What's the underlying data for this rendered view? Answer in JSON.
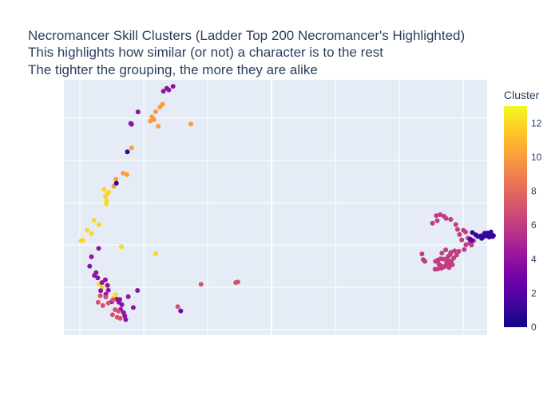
{
  "chart_data": {
    "type": "scatter",
    "title_lines": [
      "Necromancer Skill Clusters (Ladder Top 200 Necromancer's Highlighted)",
      "This highlights how similar (or not) a character is to the rest",
      "The tighter the grouping, the more they are alike"
    ],
    "xlabel": "",
    "ylabel": "",
    "xlim": [
      0,
      100
    ],
    "ylim": [
      0,
      100
    ],
    "grid": true,
    "plot_background": "#e5ecf6",
    "grid_color": "#ffffff",
    "colorbar": {
      "title": "Cluster",
      "min": 0,
      "max": 13,
      "ticks": [
        0,
        2,
        4,
        6,
        8,
        10,
        12
      ],
      "colorscale": [
        "#0d0887",
        "#46039f",
        "#7201a8",
        "#9c179e",
        "#bd3786",
        "#d8576b",
        "#ed7953",
        "#fb9f3a",
        "#fdca26",
        "#f0f921"
      ]
    },
    "points": [
      [
        24.3,
        96.7,
        4
      ],
      [
        25.8,
        97.4,
        4
      ],
      [
        23.5,
        95.5,
        4
      ],
      [
        24.8,
        96.0,
        4
      ],
      [
        17.5,
        87.4,
        4
      ],
      [
        15.8,
        82.9,
        4
      ],
      [
        16.0,
        82.6,
        4
      ],
      [
        20.8,
        85.5,
        10
      ],
      [
        21.7,
        87.5,
        10
      ],
      [
        22.7,
        89.3,
        10
      ],
      [
        23.3,
        90.4,
        10
      ],
      [
        21.3,
        84.4,
        10
      ],
      [
        20.4,
        83.8,
        10
      ],
      [
        22.3,
        81.8,
        10
      ],
      [
        30.0,
        82.7,
        10
      ],
      [
        16.0,
        73.3,
        10
      ],
      [
        14.9,
        62.9,
        10
      ],
      [
        14.0,
        63.4,
        10
      ],
      [
        12.3,
        61.0,
        10
      ],
      [
        11.8,
        58.3,
        10
      ],
      [
        12.4,
        59.5,
        1
      ],
      [
        15.0,
        71.8,
        1
      ],
      [
        9.5,
        57.1,
        12
      ],
      [
        10.6,
        56.0,
        12
      ],
      [
        10.2,
        55.3,
        12
      ],
      [
        9.8,
        54.2,
        12
      ],
      [
        10.1,
        52.6,
        12
      ],
      [
        10.0,
        51.3,
        12
      ],
      [
        7.1,
        45.0,
        12
      ],
      [
        8.3,
        43.3,
        12
      ],
      [
        6.5,
        39.8,
        12
      ],
      [
        4.5,
        37.1,
        12
      ],
      [
        4.1,
        37.0,
        12
      ],
      [
        5.5,
        41.1,
        12
      ],
      [
        13.6,
        34.6,
        12
      ],
      [
        21.7,
        31.9,
        12
      ],
      [
        11.8,
        14.5,
        12
      ],
      [
        9.0,
        18.6,
        12
      ],
      [
        8.3,
        20.0,
        12
      ],
      [
        12.2,
        15.8,
        12
      ],
      [
        8.2,
        34.0,
        4
      ],
      [
        6.5,
        30.7,
        4
      ],
      [
        6.1,
        27.0,
        4
      ],
      [
        7.6,
        24.5,
        4
      ],
      [
        7.2,
        23.4,
        4
      ],
      [
        8.0,
        22.4,
        4
      ],
      [
        9.8,
        21.7,
        4
      ],
      [
        10.3,
        19.5,
        4
      ],
      [
        10.5,
        17.6,
        4
      ],
      [
        9.9,
        16.0,
        4
      ],
      [
        12.5,
        14.1,
        4
      ],
      [
        13.2,
        14.0,
        4
      ],
      [
        11.3,
        13.1,
        4
      ],
      [
        13.0,
        12.9,
        4
      ],
      [
        13.7,
        11.9,
        4
      ],
      [
        13.4,
        10.1,
        4
      ],
      [
        14.1,
        8.8,
        4
      ],
      [
        14.4,
        7.5,
        4
      ],
      [
        14.6,
        6.1,
        4
      ],
      [
        16.4,
        10.8,
        4
      ],
      [
        17.4,
        17.5,
        4
      ],
      [
        15.2,
        15.1,
        4
      ],
      [
        9.0,
        20.6,
        4
      ],
      [
        8.7,
        17.4,
        4
      ],
      [
        27.6,
        9.5,
        3
      ],
      [
        9.9,
        14.9,
        7
      ],
      [
        8.6,
        15.4,
        7
      ],
      [
        8.1,
        12.9,
        7
      ],
      [
        9.2,
        11.6,
        7
      ],
      [
        10.5,
        12.6,
        7
      ],
      [
        11.6,
        13.8,
        7
      ],
      [
        12.1,
        10.0,
        7
      ],
      [
        11.5,
        8.0,
        7
      ],
      [
        12.6,
        7.0,
        7
      ],
      [
        13.3,
        6.6,
        7
      ],
      [
        12.9,
        9.4,
        7
      ],
      [
        26.9,
        11.2,
        7
      ],
      [
        32.4,
        19.9,
        7
      ],
      [
        41.1,
        20.8,
        7
      ],
      [
        40.6,
        20.6,
        7
      ],
      [
        88.0,
        46.8,
        6
      ],
      [
        88.9,
        47.2,
        6
      ],
      [
        89.8,
        46.6,
        6
      ],
      [
        90.3,
        45.7,
        6
      ],
      [
        87.1,
        43.8,
        6
      ],
      [
        88.2,
        44.8,
        6
      ],
      [
        91.4,
        45.3,
        6
      ],
      [
        92.6,
        43.3,
        6
      ],
      [
        93.0,
        41.4,
        6
      ],
      [
        93.5,
        39.4,
        6
      ],
      [
        94.4,
        41.1,
        6
      ],
      [
        94.9,
        40.4,
        6
      ],
      [
        95.5,
        38.0,
        6
      ],
      [
        95.9,
        36.2,
        6
      ],
      [
        96.3,
        35.3,
        6
      ],
      [
        95.0,
        35.4,
        6
      ],
      [
        94.6,
        33.5,
        6
      ],
      [
        93.3,
        32.8,
        6
      ],
      [
        92.3,
        33.0,
        6
      ],
      [
        91.4,
        32.4,
        6
      ],
      [
        91.3,
        31.6,
        6
      ],
      [
        90.8,
        30.8,
        6
      ],
      [
        90.5,
        30.0,
        6
      ],
      [
        89.6,
        29.8,
        6
      ],
      [
        90.9,
        29.0,
        6
      ],
      [
        91.0,
        28.2,
        6
      ],
      [
        91.5,
        28.9,
        6
      ],
      [
        90.4,
        28.5,
        6
      ],
      [
        89.0,
        29.9,
        6
      ],
      [
        88.4,
        29.4,
        6
      ],
      [
        87.8,
        28.9,
        6
      ],
      [
        88.6,
        27.8,
        6
      ],
      [
        89.1,
        27.1,
        6
      ],
      [
        90.0,
        26.9,
        6
      ],
      [
        90.6,
        27.3,
        6
      ],
      [
        91.0,
        26.5,
        6
      ],
      [
        91.8,
        27.6,
        6
      ],
      [
        92.1,
        30.2,
        6
      ],
      [
        92.8,
        31.4,
        6
      ],
      [
        89.2,
        26.2,
        6
      ],
      [
        89.6,
        26.7,
        6
      ],
      [
        84.9,
        29.6,
        6
      ],
      [
        84.6,
        31.8,
        6
      ],
      [
        85.3,
        28.9,
        6
      ],
      [
        89.3,
        32.1,
        6
      ],
      [
        90.2,
        33.4,
        6
      ],
      [
        96.8,
        37.0,
        6
      ],
      [
        94.0,
        37.3,
        6
      ],
      [
        87.7,
        25.8,
        6
      ],
      [
        88.3,
        25.9,
        6
      ],
      [
        96.5,
        40.2,
        1
      ],
      [
        97.3,
        39.3,
        1
      ],
      [
        97.8,
        38.7,
        1
      ],
      [
        98.5,
        38.9,
        1
      ],
      [
        99.0,
        38.3,
        1
      ],
      [
        99.6,
        39.0,
        1
      ],
      [
        100.3,
        39.4,
        1
      ],
      [
        101.0,
        39.4,
        1
      ],
      [
        101.5,
        39.0,
        1
      ],
      [
        101.3,
        38.6,
        1
      ],
      [
        100.5,
        38.4,
        1
      ],
      [
        100.1,
        38.8,
        1
      ],
      [
        98.7,
        37.9,
        1
      ],
      [
        100.1,
        40.0,
        1
      ],
      [
        100.9,
        40.4,
        1
      ],
      [
        99.4,
        39.9,
        1
      ],
      [
        96.0,
        37.6,
        2
      ],
      [
        96.4,
        37.1,
        2
      ]
    ]
  }
}
